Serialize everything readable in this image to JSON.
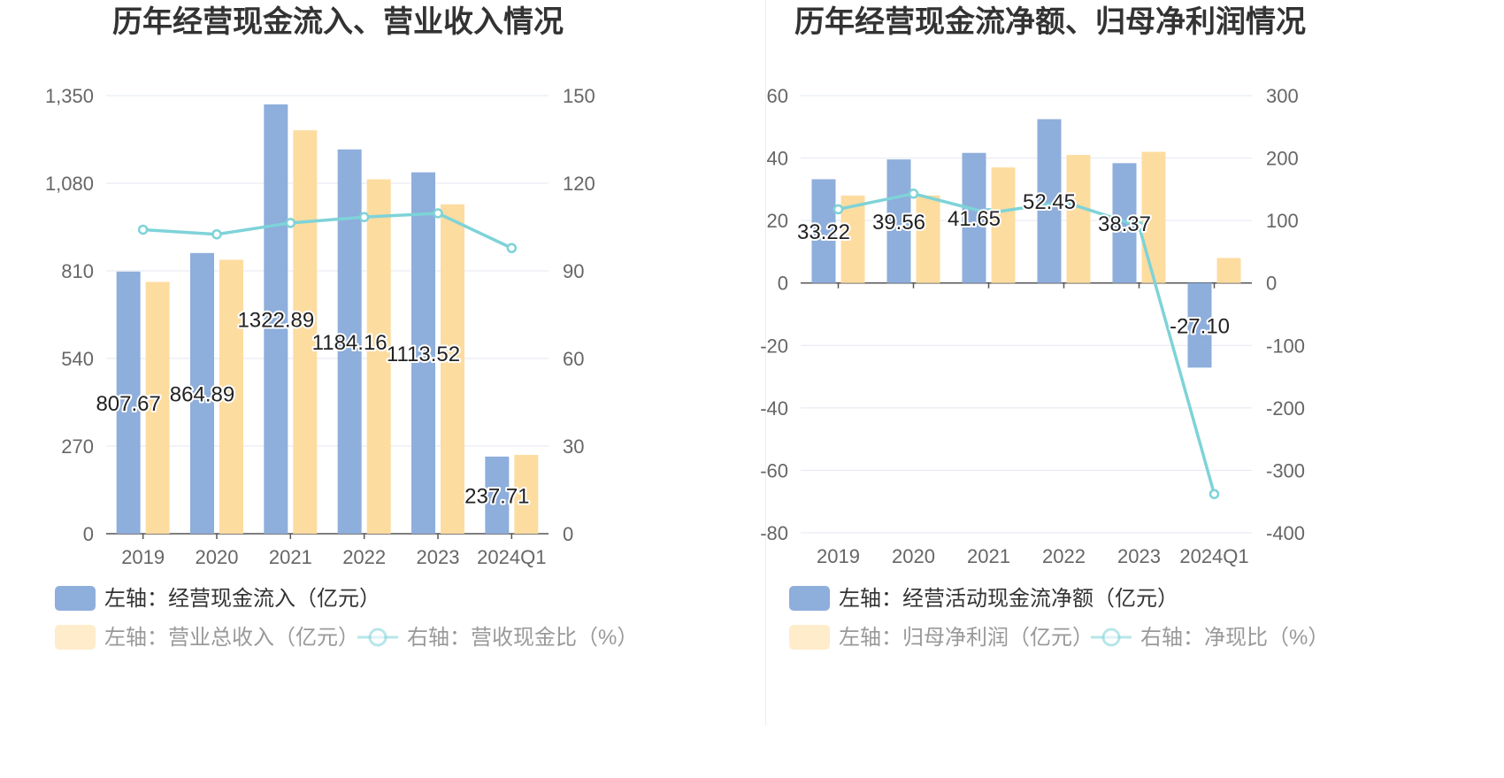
{
  "chart_data": [
    {
      "type": "bar",
      "title": "历年经营现金流入、营业收入情况",
      "categories": [
        "2019",
        "2020",
        "2021",
        "2022",
        "2023",
        "2024Q1"
      ],
      "left_axis": {
        "min": 0,
        "max": 1350,
        "ticks": [
          "0",
          "270",
          "540",
          "810",
          "1,080",
          "1,350"
        ]
      },
      "right_axis": {
        "min": 0,
        "max": 150,
        "ticks": [
          "0",
          "30",
          "60",
          "90",
          "120",
          "150"
        ]
      },
      "series": [
        {
          "name": "左轴：经营现金流入（亿元）",
          "kind": "bar",
          "axis": "left",
          "color": "#8eaedc",
          "values": [
            807.67,
            864.89,
            1322.89,
            1184.16,
            1113.52,
            237.71
          ],
          "labels": [
            "807.67",
            "864.89",
            "1322.89",
            "1184.16",
            "1113.52",
            "237.71"
          ]
        },
        {
          "name": "左轴：营业总收入（亿元）",
          "kind": "bar",
          "axis": "left",
          "color": "#fddca0",
          "values": [
            776,
            844,
            1243,
            1092,
            1015,
            243
          ]
        },
        {
          "name": "右轴：营收现金比（%）",
          "kind": "line",
          "axis": "right",
          "color": "#7ed3d8",
          "values": [
            104.1,
            102.5,
            106.4,
            108.4,
            109.7,
            97.8
          ]
        }
      ],
      "grid": true,
      "legend": "bottom-left"
    },
    {
      "type": "bar",
      "title": "历年经营现金流净额、归母净利润情况",
      "categories": [
        "2019",
        "2020",
        "2021",
        "2022",
        "2023",
        "2024Q1"
      ],
      "left_axis": {
        "min": -80,
        "max": 60,
        "ticks": [
          "-80",
          "-60",
          "-40",
          "-20",
          "0",
          "20",
          "40",
          "60"
        ]
      },
      "right_axis": {
        "min": -400,
        "max": 300,
        "ticks": [
          "-400",
          "-300",
          "-200",
          "-100",
          "0",
          "100",
          "200",
          "300"
        ]
      },
      "series": [
        {
          "name": "左轴：经营活动现金流净额（亿元）",
          "kind": "bar",
          "axis": "left",
          "color": "#8eaedc",
          "values": [
            33.22,
            39.56,
            41.65,
            52.45,
            38.37,
            -27.1
          ],
          "labels": [
            "33.22",
            "39.56",
            "41.65",
            "52.45",
            "38.37",
            "-27.10"
          ]
        },
        {
          "name": "左轴：归母净利润（亿元）",
          "kind": "bar",
          "axis": "left",
          "color": "#fddca0",
          "values": [
            28,
            28,
            37,
            41,
            42,
            8
          ]
        },
        {
          "name": "右轴：净现比（%）",
          "kind": "line",
          "axis": "right",
          "color": "#7ed3d8",
          "values": [
            118,
            143,
            112,
            130,
            91,
            -338
          ]
        }
      ],
      "grid": true,
      "legend": "bottom-left"
    }
  ]
}
